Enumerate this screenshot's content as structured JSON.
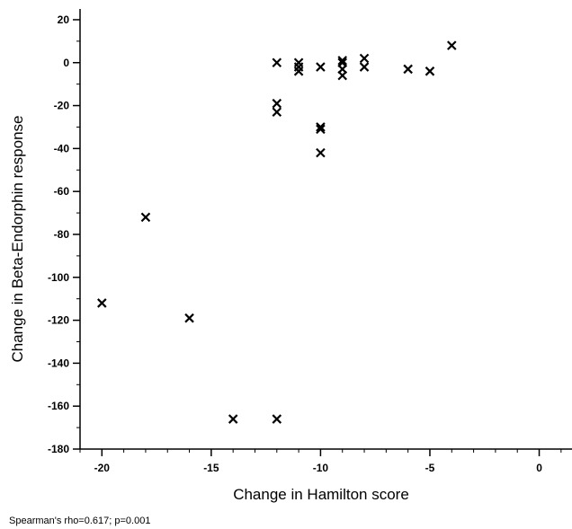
{
  "chart_data": {
    "type": "scatter",
    "marker": "x",
    "xlabel": "Change in Hamilton score",
    "ylabel": "Change in Beta-Endorphin response",
    "xlim": [
      -21,
      1.5
    ],
    "ylim": [
      -180,
      25
    ],
    "x_ticks": [
      -20,
      -15,
      -10,
      -5,
      0
    ],
    "y_ticks": [
      20,
      0,
      -20,
      -40,
      -60,
      -80,
      -100,
      -120,
      -140,
      -160,
      -180
    ],
    "grid": false,
    "annotation": "Spearman's rho=0.617; p=0.001",
    "points": [
      {
        "x": -20,
        "y": -112
      },
      {
        "x": -18,
        "y": -72
      },
      {
        "x": -16,
        "y": -119
      },
      {
        "x": -14,
        "y": -166
      },
      {
        "x": -12,
        "y": -166
      },
      {
        "x": -12,
        "y": 0
      },
      {
        "x": -12,
        "y": -19
      },
      {
        "x": -12,
        "y": -23
      },
      {
        "x": -11,
        "y": 0
      },
      {
        "x": -11,
        "y": -2
      },
      {
        "x": -11,
        "y": -4
      },
      {
        "x": -10,
        "y": -2
      },
      {
        "x": -10,
        "y": -30
      },
      {
        "x": -10,
        "y": -31
      },
      {
        "x": -10,
        "y": -42
      },
      {
        "x": -9,
        "y": 1
      },
      {
        "x": -9,
        "y": 0
      },
      {
        "x": -9,
        "y": -3
      },
      {
        "x": -9,
        "y": -6
      },
      {
        "x": -8,
        "y": 2
      },
      {
        "x": -8,
        "y": -2
      },
      {
        "x": -6,
        "y": -3
      },
      {
        "x": -5,
        "y": -4
      },
      {
        "x": -4,
        "y": 8
      }
    ]
  }
}
